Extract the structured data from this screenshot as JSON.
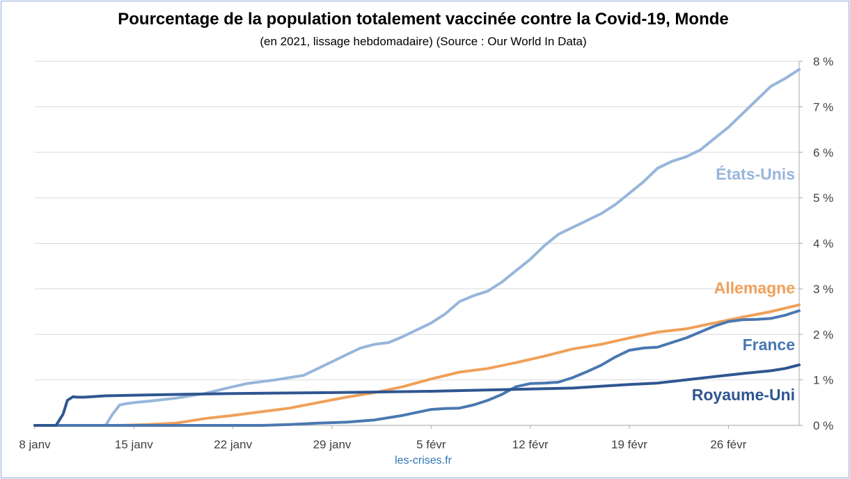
{
  "header": {
    "title": "Pourcentage de la population totalement vaccinée contre la Covid-19, Monde",
    "subtitle": "(en 2021, lissage hebdomadaire) (Source : Our World In Data)"
  },
  "footer": {
    "source": "les-crises.fr"
  },
  "chart_data": {
    "type": "line",
    "title": "Pourcentage de la population totalement vaccinée contre la Covid-19, Monde",
    "subtitle": "(en 2021, lissage hebdomadaire) (Source : Our World In Data)",
    "xlabel": "",
    "ylabel": "",
    "x_unit": "day offset from 8 janv",
    "xlim": [
      0,
      54
    ],
    "ylim": [
      0,
      8
    ],
    "x_ticks": [
      {
        "x": 0,
        "label": "8 janv"
      },
      {
        "x": 7,
        "label": "15 janv"
      },
      {
        "x": 14,
        "label": "22 janv"
      },
      {
        "x": 21,
        "label": "29 janv"
      },
      {
        "x": 28,
        "label": "5 févr"
      },
      {
        "x": 35,
        "label": "12 févr"
      },
      {
        "x": 42,
        "label": "19 févr"
      },
      {
        "x": 49,
        "label": "26 févr"
      }
    ],
    "y_ticks": [
      {
        "y": 0,
        "label": "0 %"
      },
      {
        "y": 1,
        "label": "1 %"
      },
      {
        "y": 2,
        "label": "2 %"
      },
      {
        "y": 3,
        "label": "3 %"
      },
      {
        "y": 4,
        "label": "4 %"
      },
      {
        "y": 5,
        "label": "5 %"
      },
      {
        "y": 6,
        "label": "6 %"
      },
      {
        "y": 7,
        "label": "7 %"
      },
      {
        "y": 8,
        "label": "8 %"
      }
    ],
    "y_axis_side": "right",
    "grid": true,
    "legend": "inline labels near line ends",
    "series": [
      {
        "name": "États-Unis",
        "color": "#97b6da",
        "x": [
          0,
          5,
          5.5,
          6,
          6.5,
          7,
          8,
          10,
          12,
          14,
          15,
          17,
          19,
          21,
          22,
          23,
          24,
          25,
          26,
          27,
          28,
          29,
          30,
          31,
          32,
          33,
          34,
          35,
          36,
          37,
          38,
          39,
          40,
          41,
          42,
          43,
          44,
          45,
          46,
          47,
          48,
          49,
          50,
          51,
          52,
          53,
          54
        ],
        "values": [
          0,
          0,
          0.25,
          0.45,
          0.48,
          0.5,
          0.53,
          0.6,
          0.7,
          0.85,
          0.92,
          1.0,
          1.1,
          1.4,
          1.55,
          1.7,
          1.78,
          1.82,
          1.95,
          2.1,
          2.25,
          2.45,
          2.72,
          2.85,
          2.95,
          3.15,
          3.4,
          3.65,
          3.95,
          4.2,
          4.35,
          4.5,
          4.65,
          4.85,
          5.1,
          5.35,
          5.65,
          5.8,
          5.9,
          6.05,
          6.3,
          6.55,
          6.85,
          7.15,
          7.45,
          7.62,
          7.82
        ]
      },
      {
        "name": "Allemagne",
        "color": "#f0a05a",
        "x": [
          0,
          6,
          8,
          10,
          12,
          14,
          16,
          18,
          20,
          22,
          24,
          26,
          28,
          30,
          32,
          34,
          36,
          38,
          40,
          42,
          44,
          46,
          48,
          50,
          52,
          54
        ],
        "values": [
          0,
          0,
          0.02,
          0.05,
          0.15,
          0.22,
          0.3,
          0.38,
          0.5,
          0.62,
          0.72,
          0.85,
          1.02,
          1.17,
          1.25,
          1.38,
          1.52,
          1.68,
          1.78,
          1.92,
          2.05,
          2.12,
          2.25,
          2.38,
          2.5,
          2.65
        ]
      },
      {
        "name": "France",
        "color": "#4a78b0",
        "x": [
          0,
          16,
          18,
          20,
          22,
          24,
          26,
          28,
          29,
          30,
          31,
          32,
          33,
          34,
          35,
          36,
          37,
          38,
          39,
          40,
          41,
          42,
          43,
          44,
          45,
          46,
          47,
          48,
          49,
          50,
          51,
          52,
          53,
          54
        ],
        "values": [
          0,
          0,
          0.02,
          0.05,
          0.07,
          0.12,
          0.22,
          0.35,
          0.37,
          0.38,
          0.45,
          0.55,
          0.68,
          0.85,
          0.92,
          0.93,
          0.95,
          1.05,
          1.18,
          1.32,
          1.5,
          1.65,
          1.7,
          1.72,
          1.82,
          1.92,
          2.05,
          2.18,
          2.28,
          2.32,
          2.33,
          2.35,
          2.42,
          2.52
        ]
      },
      {
        "name": "Royaume-Uni",
        "color": "#2f5690",
        "x": [
          0,
          1.5,
          2,
          2.3,
          2.7,
          3,
          3.5,
          5,
          8,
          14,
          21,
          28,
          35,
          38,
          40,
          42,
          44,
          46,
          48,
          50,
          52,
          53,
          54
        ],
        "values": [
          0,
          0,
          0.25,
          0.55,
          0.63,
          0.62,
          0.62,
          0.65,
          0.67,
          0.7,
          0.72,
          0.75,
          0.8,
          0.82,
          0.86,
          0.9,
          0.93,
          1.0,
          1.07,
          1.14,
          1.2,
          1.25,
          1.33
        ]
      }
    ],
    "series_label_y": [
      5.4,
      2.9,
      1.65,
      0.55
    ]
  }
}
